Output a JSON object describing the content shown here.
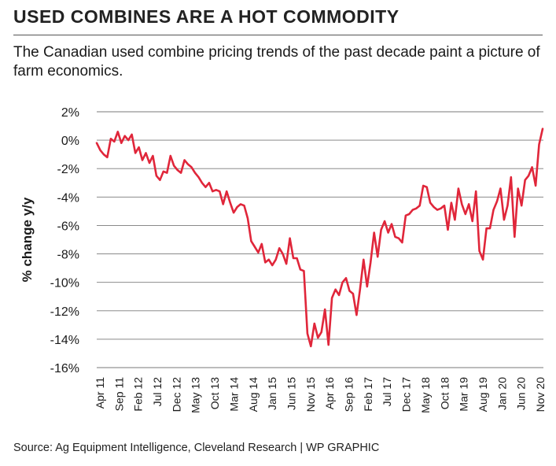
{
  "title": "USED COMBINES ARE A HOT COMMODITY",
  "subtitle": "The Canadian used combine pricing trends of the past decade paint a picture of farm economics.",
  "source": "Source: Ag Equipment Intelligence, Cleveland Research |  WP GRAPHIC",
  "colors": {
    "line": "#e0263a",
    "grid": "#7a7a7a",
    "text": "#1a1a1a"
  },
  "chart_data": {
    "type": "line",
    "ylabel": "% change y/y",
    "xlabel": "",
    "ylim": [
      -16,
      2
    ],
    "yticks": [
      2,
      0,
      -2,
      -4,
      -6,
      -8,
      -10,
      -12,
      -14,
      -16
    ],
    "ytick_labels": [
      "2%",
      "0%",
      "-2%",
      "-4%",
      "-6%",
      "-8%",
      "-10%",
      "-12%",
      "-14%",
      "-16%"
    ],
    "xtick_labels": [
      "Apr 11",
      "Sep 11",
      "Feb 12",
      "Jul 12",
      "Dec 12",
      "May 13",
      "Oct 13",
      "Mar 14",
      "Aug 14",
      "Jan 15",
      "Jun 15",
      "Nov 15",
      "Apr 16",
      "Sep 16",
      "Feb 17",
      "Jul 17",
      "Dec 17",
      "May 18",
      "Oct 18",
      "Mar 19",
      "Aug 19",
      "Jan 20",
      "Jun 20",
      "Nov 20"
    ],
    "grid": true,
    "series": [
      {
        "values": [
          -0.2,
          -0.7,
          -1.0,
          -1.2,
          0.1,
          -0.1,
          0.6,
          -0.2,
          0.3,
          0.0,
          0.4,
          -0.9,
          -0.5,
          -1.4,
          -0.9,
          -1.6,
          -1.1,
          -2.5,
          -2.8,
          -2.2,
          -2.3,
          -1.1,
          -1.8,
          -2.1,
          -2.3,
          -1.4,
          -1.7,
          -1.9,
          -2.3,
          -2.6,
          -3.0,
          -3.3,
          -3.0,
          -3.6,
          -3.5,
          -3.6,
          -4.5,
          -3.6,
          -4.4,
          -5.1,
          -4.7,
          -4.5,
          -4.6,
          -5.5,
          -7.1,
          -7.5,
          -7.9,
          -7.3,
          -8.6,
          -8.4,
          -8.8,
          -8.4,
          -7.6,
          -8.0,
          -8.7,
          -6.9,
          -8.3,
          -8.3,
          -9.1,
          -9.2,
          -13.6,
          -14.5,
          -12.9,
          -13.9,
          -13.5,
          -11.9,
          -14.4,
          -11.1,
          -10.5,
          -10.9,
          -10.0,
          -9.7,
          -10.6,
          -10.8,
          -12.3,
          -10.5,
          -8.4,
          -10.3,
          -8.6,
          -6.5,
          -8.2,
          -6.3,
          -5.7,
          -6.5,
          -5.9,
          -6.8,
          -6.9,
          -7.2,
          -5.3,
          -5.2,
          -4.9,
          -4.8,
          -4.6,
          -3.2,
          -3.3,
          -4.4,
          -4.7,
          -4.9,
          -4.8,
          -4.6,
          -6.3,
          -4.4,
          -5.6,
          -3.4,
          -4.5,
          -5.2,
          -4.5,
          -5.7,
          -3.6,
          -7.8,
          -8.4,
          -6.2,
          -6.2,
          -4.9,
          -4.3,
          -3.4,
          -5.6,
          -4.6,
          -2.6,
          -6.8,
          -3.4,
          -4.6,
          -2.8,
          -2.5,
          -1.9,
          -3.2,
          -0.3,
          0.8
        ]
      }
    ]
  }
}
